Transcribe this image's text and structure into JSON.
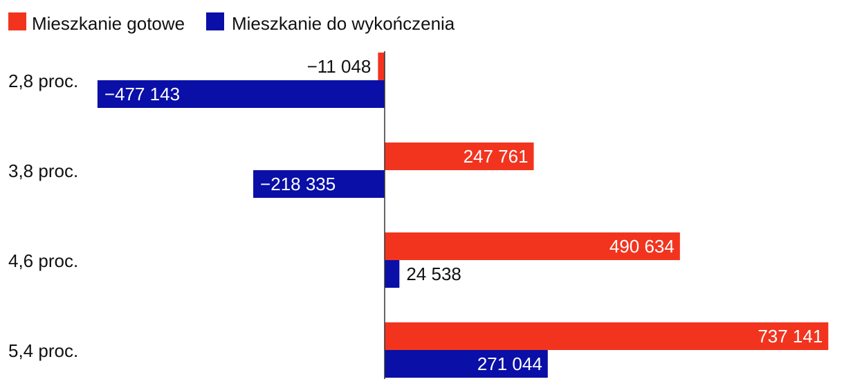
{
  "chart_data": {
    "type": "bar",
    "orientation": "horizontal",
    "title": "",
    "xlabel": "",
    "ylabel": "",
    "categories": [
      "2,8 proc.",
      "3,8 proc.",
      "4,6 proc.",
      "5,4 proc."
    ],
    "series": [
      {
        "name": "Mieszkanie gotowe",
        "color": "#f2341f",
        "values": [
          -11048,
          247761,
          490634,
          737141
        ],
        "labels": [
          "−11 048",
          "247 761",
          "490 634",
          "737 141"
        ]
      },
      {
        "name": "Mieszkanie do wykończenia",
        "color": "#0a0fa8",
        "values": [
          -477143,
          -218335,
          24538,
          271044
        ],
        "labels": [
          "−477 143",
          "−218 335",
          "24 538",
          "271 044"
        ]
      }
    ],
    "legend_position": "top-left",
    "grid": false,
    "zero_line": true
  }
}
